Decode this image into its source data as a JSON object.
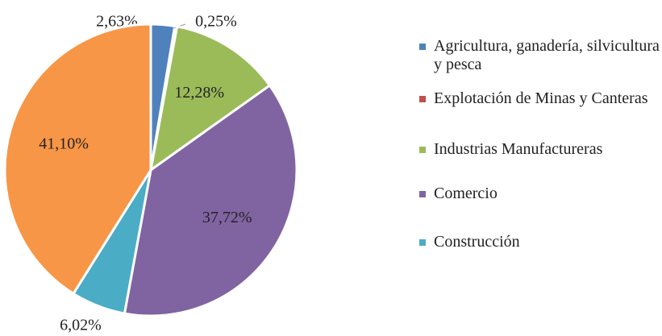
{
  "chart_data": {
    "type": "pie",
    "categories": [
      "Agricultura, ganadería, silvicultura y pesca",
      "Explotación de Minas y Canteras",
      "Industrias Manufactureras",
      "Comercio",
      "Construcción",
      null
    ],
    "values": [
      2.63,
      0.25,
      12.28,
      37.72,
      6.02,
      41.1
    ],
    "value_labels": [
      "2,63%",
      "0,25%",
      "12,28%",
      "37,72%",
      "6,02%",
      "41,10%"
    ],
    "colors": [
      "#4f81bd",
      "#c0504d",
      "#9bbb59",
      "#8064a2",
      "#4bacc6",
      "#f79646"
    ],
    "legend": "right"
  }
}
